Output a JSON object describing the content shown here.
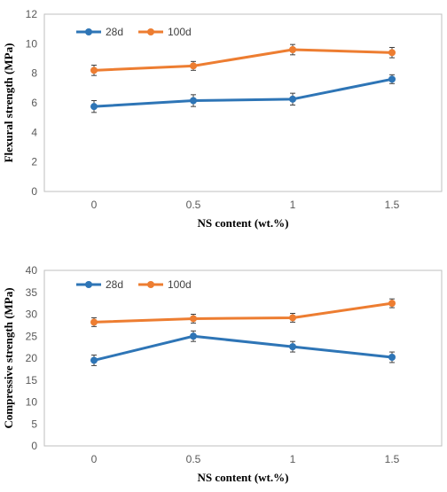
{
  "chart_data": [
    {
      "type": "line",
      "title": "",
      "xlabel": "NS content (wt.%)",
      "ylabel": "Flexural strength (MPa)",
      "categories": [
        "0",
        "0.5",
        "1",
        "1.5"
      ],
      "ylim": [
        0,
        12
      ],
      "yticks": [
        0,
        2,
        4,
        6,
        8,
        10,
        12
      ],
      "grid": false,
      "legend_position": "top-left",
      "series": [
        {
          "name": "28d",
          "color": "#2E75B6",
          "values": [
            5.75,
            6.15,
            6.25,
            7.6
          ],
          "errors": [
            0.4,
            0.4,
            0.4,
            0.3
          ]
        },
        {
          "name": "100d",
          "color": "#ED7D31",
          "values": [
            8.2,
            8.5,
            9.6,
            9.4
          ],
          "errors": [
            0.35,
            0.3,
            0.35,
            0.35
          ]
        }
      ]
    },
    {
      "type": "line",
      "title": "",
      "xlabel": "NS content (wt.%)",
      "ylabel": "Compressive strength (MPa)",
      "categories": [
        "0",
        "0.5",
        "1",
        "1.5"
      ],
      "ylim": [
        0,
        40
      ],
      "yticks": [
        0,
        5,
        10,
        15,
        20,
        25,
        30,
        35,
        40
      ],
      "grid": false,
      "legend_position": "top-left",
      "series": [
        {
          "name": "28d",
          "color": "#2E75B6",
          "values": [
            19.5,
            25.0,
            22.6,
            20.2
          ],
          "errors": [
            1.2,
            1.2,
            1.2,
            1.2
          ]
        },
        {
          "name": "100d",
          "color": "#ED7D31",
          "values": [
            28.2,
            29.0,
            29.2,
            32.5
          ],
          "errors": [
            1.0,
            1.0,
            1.0,
            1.0
          ]
        }
      ]
    }
  ]
}
